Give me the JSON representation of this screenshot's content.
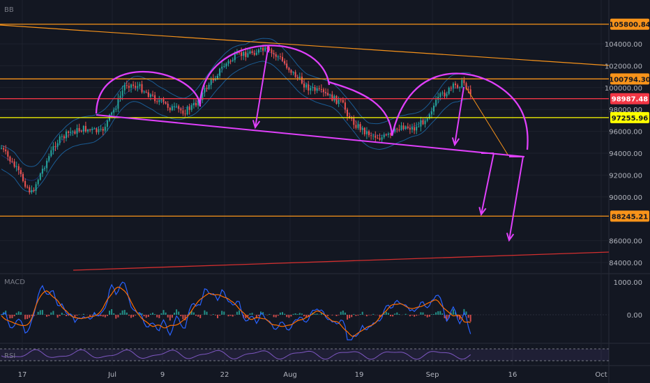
{
  "chart_data": {
    "type": "candlestick",
    "indicators": {
      "main": "BB",
      "panes": [
        "MACD",
        "RSI"
      ]
    },
    "price_axis": {
      "ticks": [
        "104000.00",
        "102000.00",
        "100000.00",
        "98000.00",
        "96000.00",
        "94000.00",
        "92000.00",
        "90000.00",
        "86000.00",
        "84000.00"
      ],
      "ylim": [
        83000,
        107200
      ]
    },
    "macd_axis": {
      "ticks": [
        "1000.00",
        "0.00"
      ]
    },
    "time_axis": {
      "ticks": [
        "17",
        "Jul",
        "9",
        "22",
        "Aug",
        "19",
        "Sep",
        "16",
        "Oct"
      ]
    },
    "price_tags": [
      {
        "value": "105800.84",
        "color": "#f7931a",
        "text_color": "#131722"
      },
      {
        "value": "100794.30",
        "color": "#f7931a",
        "text_color": "#131722"
      },
      {
        "value": "98987.48",
        "color": "#f23645",
        "text_color": "#ffffff"
      },
      {
        "value": "97255.96",
        "color": "#ffff00",
        "text_color": "#131722"
      },
      {
        "value": "88245.21",
        "color": "#f7931a",
        "text_color": "#131722"
      }
    ],
    "horizontal_lines": [
      {
        "value": 105800.84,
        "color": "#f7931a"
      },
      {
        "value": 100794.3,
        "color": "#f7931a"
      },
      {
        "value": 98987.48,
        "color": "#f23645"
      },
      {
        "value": 97255.96,
        "color": "#ffff00"
      },
      {
        "value": 88245.21,
        "color": "#f7931a"
      }
    ],
    "annotation_style": {
      "pattern_color": "#e040fb",
      "trend_color": "#f7931a",
      "support_color": "#d32f2f"
    },
    "colors": {
      "up": "#26a69a",
      "down": "#ef5350",
      "bb_band": "#2196f3",
      "macd": "#2962ff",
      "signal": "#ff6d00",
      "rsi": "#7e57c2"
    }
  }
}
